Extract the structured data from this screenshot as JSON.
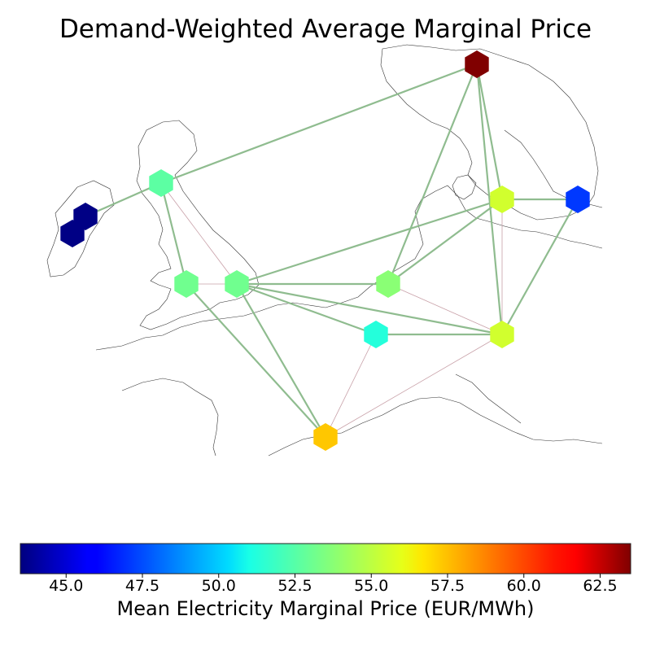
{
  "title": "Demand-Weighted Average Marginal Price",
  "colorbar": {
    "label": "Mean Electricity Marginal Price (EUR/MWh)",
    "min": 43.5,
    "max": 63.5,
    "colormap": "jet",
    "ticks": [
      "45.0",
      "47.5",
      "50.0",
      "52.5",
      "55.0",
      "57.5",
      "60.0",
      "62.5"
    ],
    "tick_values": [
      45.0,
      47.5,
      50.0,
      52.5,
      55.0,
      57.5,
      60.0,
      62.5
    ]
  },
  "nodes": [
    {
      "id": "n1",
      "price": 63.5
    },
    {
      "id": "n2",
      "price": 52.8
    },
    {
      "id": "n3",
      "price": 43.6
    },
    {
      "id": "n4",
      "price": 43.6
    },
    {
      "id": "n5",
      "price": 53.2
    },
    {
      "id": "n6",
      "price": 53.2
    },
    {
      "id": "n7",
      "price": 53.7
    },
    {
      "id": "n8",
      "price": 51.7
    },
    {
      "id": "n9",
      "price": 55.1
    },
    {
      "id": "n10",
      "price": 47.1
    },
    {
      "id": "n11",
      "price": 55.1
    },
    {
      "id": "n12",
      "price": 57.1
    }
  ],
  "lines": {
    "major_color": "#8fbc8f",
    "minor_color": "#c8a0a8"
  }
}
